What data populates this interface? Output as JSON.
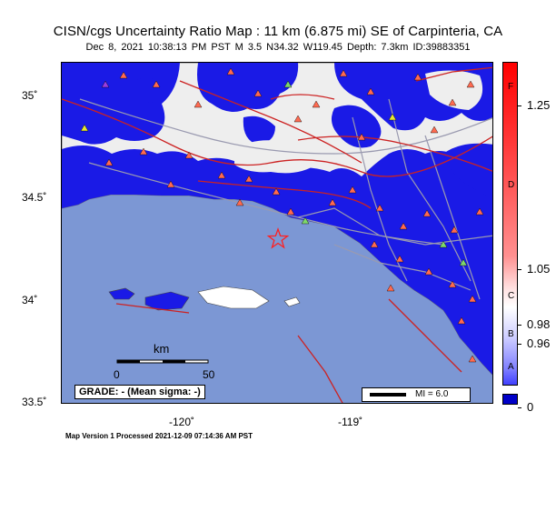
{
  "title": "CISN/cgs Uncertainty Ratio Map : 11 km (6.875 mi) SE of Carpinteria, CA",
  "subtitle": "Dec  8, 2021 10:38:13 PM PST   M 3.5   N34.32 W119.45   Depth: 7.3km   ID:39883351",
  "lat_labels": [
    "35˚",
    "34.5˚",
    "34˚",
    "33.5˚"
  ],
  "lon_labels": [
    "-120˚",
    "-119˚"
  ],
  "footer": "Map Version 1 Processed 2021-12-09 07:14:36 AM PST",
  "scale_bar": {
    "unit": "km",
    "ticks": [
      "0",
      "50"
    ]
  },
  "grade_text": "GRADE: - (Mean sigma: -)",
  "intensity_legend": "MI = 6.0",
  "colorbar": {
    "grades": [
      "F",
      "D",
      "C",
      "B",
      "A"
    ],
    "values": [
      "1.25",
      "1.05",
      "0.98",
      "0.96",
      "0"
    ]
  },
  "colors": {
    "ocean": "#7c97d4",
    "uncertainty_low": "#1a1ae6",
    "land_neutral": "#eeeeee",
    "fault": "#cc2222",
    "road": "#9a9ab0",
    "station_high": "#ff6a50",
    "station_mid": "#7fd86a",
    "station_low": "#e6e632",
    "epicenter": "#ff2020"
  },
  "icons": {
    "station": "triangle-icon",
    "epicenter": "star-icon"
  }
}
